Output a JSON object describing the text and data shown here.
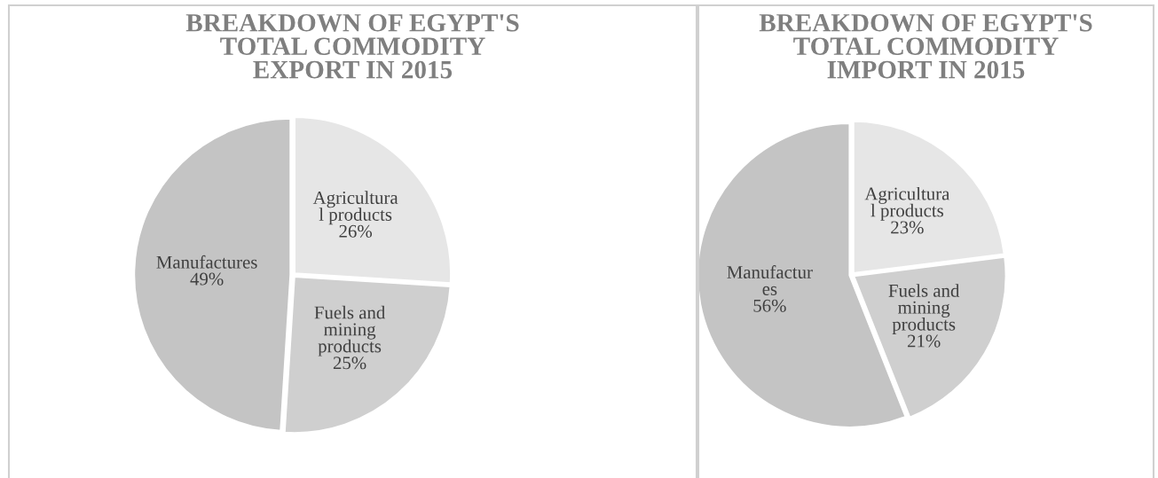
{
  "chart_data": [
    {
      "type": "pie",
      "title": "BREAKDOWN OF EGYPT'S\nTOTAL COMMODITY\nEXPORT IN 2015",
      "categories": [
        "Agricultura\nl products",
        "Fuels and\nmining\nproducts",
        "Manufactures"
      ],
      "values": [
        26,
        25,
        49
      ],
      "value_labels": [
        "26%",
        "25%",
        "49%"
      ],
      "colors": [
        "#e6e6e6",
        "#cfcfcf",
        "#c4c4c4"
      ]
    },
    {
      "type": "pie",
      "title": "BREAKDOWN OF EGYPT'S\nTOTAL COMMODITY\nIMPORT IN 2015",
      "categories": [
        "Agricultura\nl products",
        "Fuels and\nmining\nproducts",
        "Manufactur\nes"
      ],
      "values": [
        23,
        21,
        56
      ],
      "value_labels": [
        "23%",
        "21%",
        "56%"
      ],
      "colors": [
        "#e6e6e6",
        "#cfcfcf",
        "#c4c4c4"
      ]
    }
  ]
}
